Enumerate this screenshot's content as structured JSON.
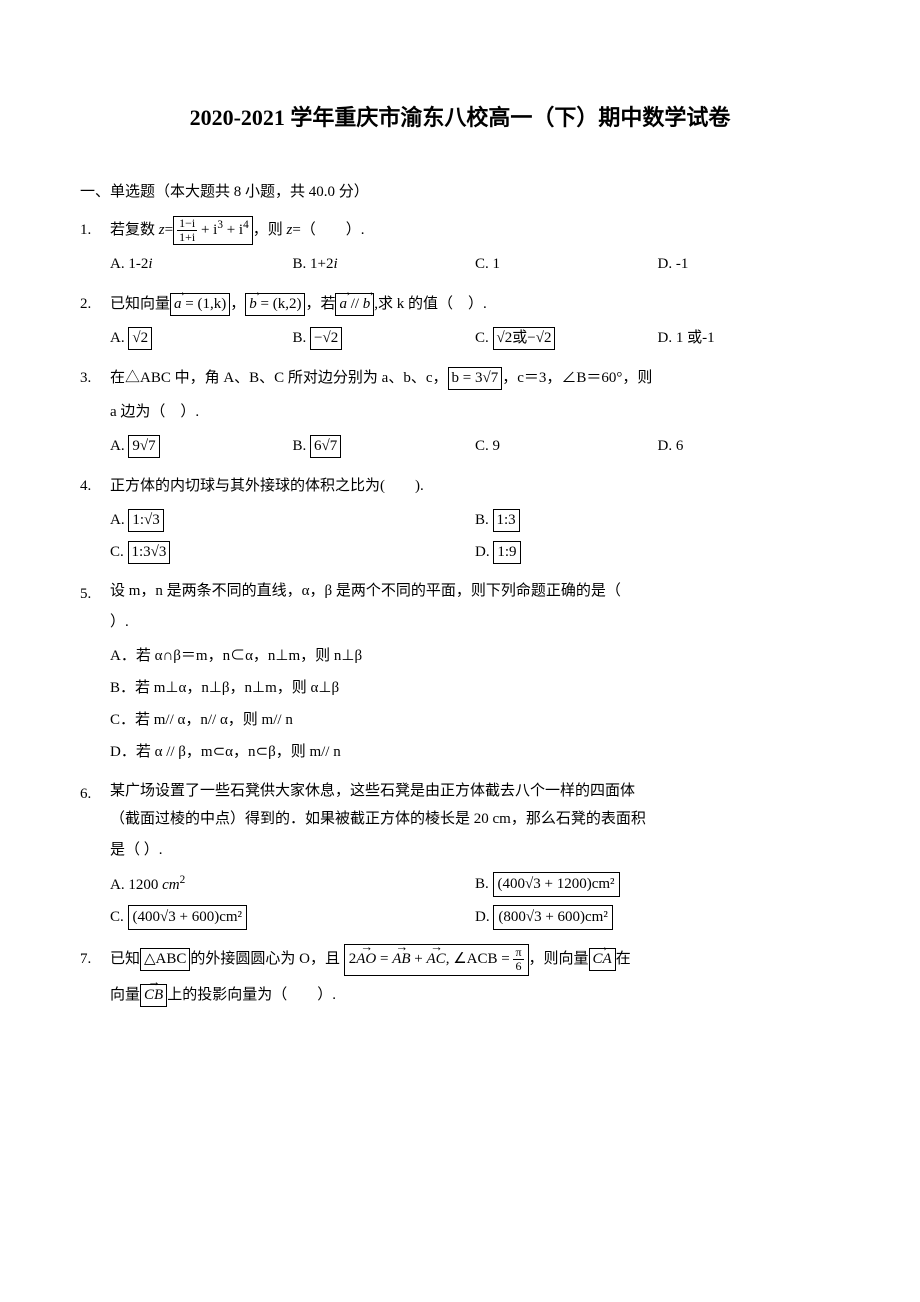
{
  "title": "2020-2021 学年重庆市渝东八校高一（下）期中数学试卷",
  "section1": "一、单选题（本大题共 8 小题，共 40.0 分）",
  "q1": {
    "num": "1.",
    "stem_a": "若复数 ",
    "stem_b": "，则 ",
    "stem_c": "（　　）.",
    "z": "z",
    "eq": "=",
    "frac_num": "1−i",
    "frac_den": "1+i",
    "plus1": " + i",
    "exp3": "3",
    "plus2": " + i",
    "exp4": "4",
    "A": "A. 1-2",
    "Ai": "i",
    "B": "B. 1+2",
    "Bi": "i",
    "C": "C. 1",
    "D": "D. -1"
  },
  "q2": {
    "num": "2.",
    "stem_a": "已知向量",
    "box1_pre": "a",
    "box1_eq": " = (1,k)",
    "comma1": "，",
    "box2_pre": "b",
    "box2_eq": " = (k,2)",
    "comma2": "，若",
    "box3_a": "a",
    "box3_par": " // ",
    "box3_b": "b",
    "stem_b": ",求 k 的值（　）.",
    "A": "A. ",
    "A_box": "√2",
    "B": "B. ",
    "B_box": "−√2",
    "C": "C. ",
    "C_box": "√2或−√2",
    "D": "D. 1 或-1"
  },
  "q3": {
    "num": "3.",
    "stem_a": "在△ABC 中，角 A、B、C 所对边分别为 a、b、c，",
    "box1": "b = 3√7",
    "stem_b": "，c＝3，∠B＝60°，则",
    "stem_c": "a 边为（　）.",
    "A": "A. ",
    "A_box": "9√7",
    "B": "B. ",
    "B_box": "6√7",
    "C": "C. 9",
    "D": "D. 6"
  },
  "q4": {
    "num": "4.",
    "stem": "正方体的内切球与其外接球的体积之比为(　　).",
    "A": "A. ",
    "A_box": "1:√3",
    "B": "B. ",
    "B_box": "1:3",
    "C": "C. ",
    "C_box": "1:3√3",
    "D": "D. ",
    "D_box": "1:9"
  },
  "q5": {
    "num": "5.",
    "stem_a": "设 m，n 是两条不同的直线，α，β 是两个不同的平面，则下列命题正确的是（",
    "stem_b": "）.",
    "A": "A．若 α∩β＝m，n⊂α，n⊥m，则 n⊥β",
    "B": "B．若 m⊥α，n⊥β，n⊥m，则 α⊥β",
    "C": "C．若 m// α，n// α，则 m// n",
    "D": "D．若 α // β，m⊂α，n⊂β，则 m// n"
  },
  "q6": {
    "num": "6.",
    "stem_a": "某广场设置了一些石凳供大家休息，这些石凳是由正方体截去八个一样的四面体",
    "stem_b": "（截面过棱的中点）得到的．如果被截正方体的棱长是 20 cm，那么石凳的表面积",
    "stem_c": "是（ ）.",
    "A": "A. 1200 ",
    "A_cm": "cm",
    "A_sq": "2",
    "B": "B. ",
    "B_box": "(400√3 + 1200)cm²",
    "C": "C. ",
    "C_box": "(400√3 + 600)cm²",
    "D": "D. ",
    "D_box": "(800√3 + 600)cm²"
  },
  "q7": {
    "num": "7.",
    "stem_a": "已知",
    "box1": "△ABC",
    "stem_b": "的外接圆圆心为 O，且",
    "box2_a": "2",
    "box2_AO": "AO",
    "box2_eq": " = ",
    "box2_AB": "AB",
    "box2_plus": " + ",
    "box2_AC": "AC",
    "box2_ang": ", ∠ACB = ",
    "box2_frac_num": "π",
    "box2_frac_den": "6",
    "stem_c": "，则向量",
    "box3": "CA",
    "stem_d": "在",
    "stem_e": "向量",
    "box4": "CB",
    "stem_f": "上的投影向量为（　　）."
  }
}
